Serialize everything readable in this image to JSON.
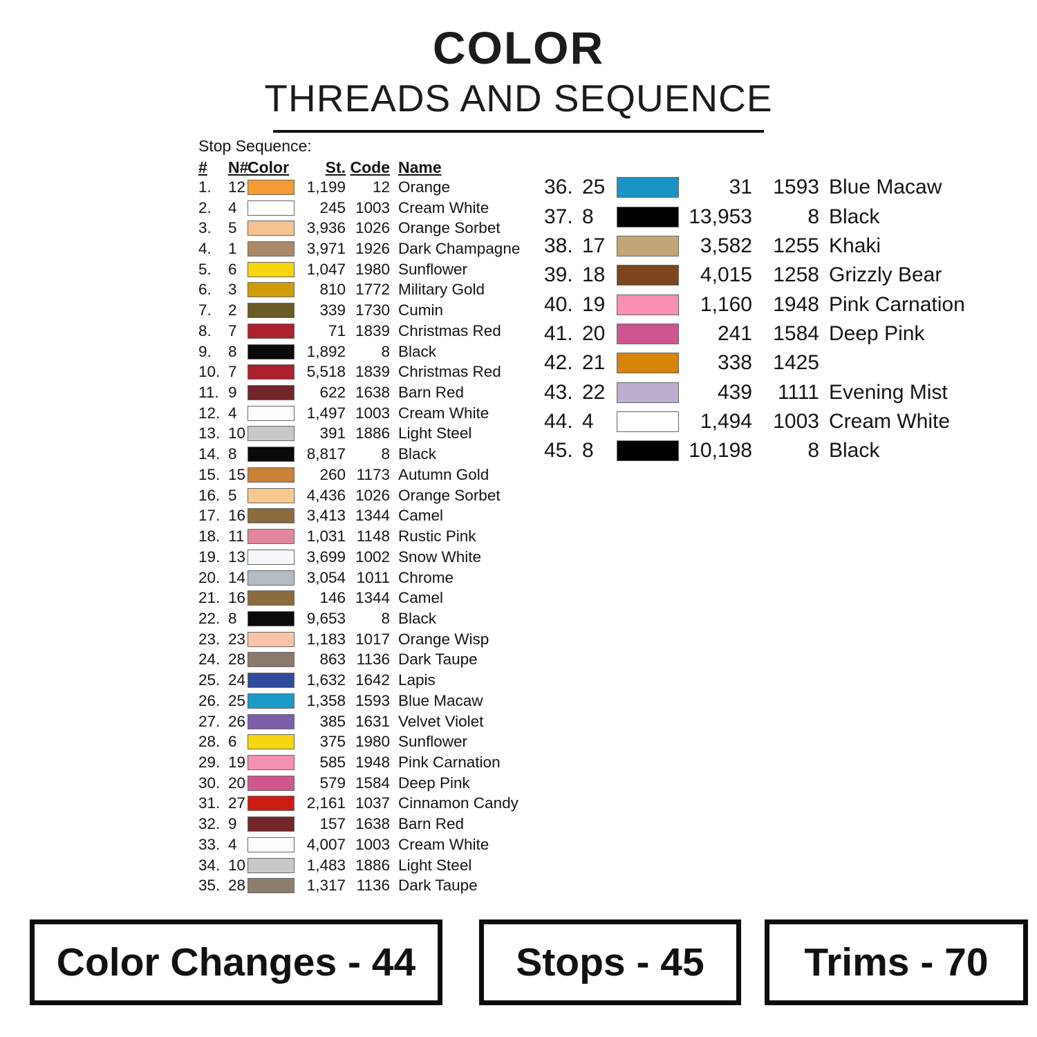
{
  "title": {
    "line1": "COLOR",
    "line2": "THREADS AND SEQUENCE"
  },
  "stop_sequence_label": "Stop Sequence:",
  "table": {
    "headers": {
      "num": "#",
      "n_num": "N#",
      "color": "Color",
      "stitches": "St.",
      "code": "Code",
      "name": "Name"
    },
    "left_rows": [
      {
        "num": "1.",
        "n": "12",
        "color": "#F59B31",
        "st": "1,199",
        "code": "12",
        "name": "Orange"
      },
      {
        "num": "2.",
        "n": "4",
        "color": "#FEFEFC",
        "st": "245",
        "code": "1003",
        "name": "Cream White"
      },
      {
        "num": "3.",
        "n": "5",
        "color": "#F5C291",
        "st": "3,936",
        "code": "1026",
        "name": "Orange Sorbet"
      },
      {
        "num": "4.",
        "n": "1",
        "color": "#A98968",
        "st": "3,971",
        "code": "1926",
        "name": "Dark Champagne"
      },
      {
        "num": "5.",
        "n": "6",
        "color": "#F5D60F",
        "st": "1,047",
        "code": "1980",
        "name": "Sunflower"
      },
      {
        "num": "6.",
        "n": "3",
        "color": "#D19C07",
        "st": "810",
        "code": "1772",
        "name": "Military Gold"
      },
      {
        "num": "7.",
        "n": "2",
        "color": "#6B5A23",
        "st": "339",
        "code": "1730",
        "name": "Cumin"
      },
      {
        "num": "8.",
        "n": "7",
        "color": "#AE1F2D",
        "st": "71",
        "code": "1839",
        "name": "Christmas Red"
      },
      {
        "num": "9.",
        "n": "8",
        "color": "#0A0A0A",
        "st": "1,892",
        "code": "8",
        "name": "Black"
      },
      {
        "num": "10.",
        "n": "7",
        "color": "#AE1F2D",
        "st": "5,518",
        "code": "1839",
        "name": "Christmas Red"
      },
      {
        "num": "11.",
        "n": "9",
        "color": "#73262A",
        "st": "622",
        "code": "1638",
        "name": "Barn Red"
      },
      {
        "num": "12.",
        "n": "4",
        "color": "#FEFEFC",
        "st": "1,497",
        "code": "1003",
        "name": "Cream White"
      },
      {
        "num": "13.",
        "n": "10",
        "color": "#C8C8C8",
        "st": "391",
        "code": "1886",
        "name": "Light Steel"
      },
      {
        "num": "14.",
        "n": "8",
        "color": "#0A0A0A",
        "st": "8,817",
        "code": "8",
        "name": "Black"
      },
      {
        "num": "15.",
        "n": "15",
        "color": "#C98136",
        "st": "260",
        "code": "1173",
        "name": "Autumn Gold"
      },
      {
        "num": "16.",
        "n": "5",
        "color": "#F8C98F",
        "st": "4,436",
        "code": "1026",
        "name": "Orange Sorbet"
      },
      {
        "num": "17.",
        "n": "16",
        "color": "#8A6C3F",
        "st": "3,413",
        "code": "1344",
        "name": "Camel"
      },
      {
        "num": "18.",
        "n": "11",
        "color": "#E2879B",
        "st": "1,031",
        "code": "1148",
        "name": "Rustic Pink"
      },
      {
        "num": "19.",
        "n": "13",
        "color": "#F5F8FB",
        "st": "3,699",
        "code": "1002",
        "name": "Snow White"
      },
      {
        "num": "20.",
        "n": "14",
        "color": "#B4BCC3",
        "st": "3,054",
        "code": "1011",
        "name": "Chrome"
      },
      {
        "num": "21.",
        "n": "16",
        "color": "#8A6C3F",
        "st": "146",
        "code": "1344",
        "name": "Camel"
      },
      {
        "num": "22.",
        "n": "8",
        "color": "#0A0A0A",
        "st": "9,653",
        "code": "8",
        "name": "Black"
      },
      {
        "num": "23.",
        "n": "23",
        "color": "#F7C4A8",
        "st": "1,183",
        "code": "1017",
        "name": "Orange Wisp"
      },
      {
        "num": "24.",
        "n": "28",
        "color": "#8B7A6A",
        "st": "863",
        "code": "1136",
        "name": "Dark Taupe"
      },
      {
        "num": "25.",
        "n": "24",
        "color": "#2F4B9B",
        "st": "1,632",
        "code": "1642",
        "name": "Lapis"
      },
      {
        "num": "26.",
        "n": "25",
        "color": "#1B9BC8",
        "st": "1,358",
        "code": "1593",
        "name": "Blue Macaw"
      },
      {
        "num": "27.",
        "n": "26",
        "color": "#7B5FA8",
        "st": "385",
        "code": "1631",
        "name": "Velvet Violet"
      },
      {
        "num": "28.",
        "n": "6",
        "color": "#F5D60F",
        "st": "375",
        "code": "1980",
        "name": "Sunflower"
      },
      {
        "num": "29.",
        "n": "19",
        "color": "#F490B2",
        "st": "585",
        "code": "1948",
        "name": "Pink Carnation"
      },
      {
        "num": "30.",
        "n": "20",
        "color": "#D1568D",
        "st": "579",
        "code": "1584",
        "name": "Deep Pink"
      },
      {
        "num": "31.",
        "n": "27",
        "color": "#CC1D13",
        "st": "2,161",
        "code": "1037",
        "name": "Cinnamon Candy"
      },
      {
        "num": "32.",
        "n": "9",
        "color": "#73262A",
        "st": "157",
        "code": "1638",
        "name": "Barn Red"
      },
      {
        "num": "33.",
        "n": "4",
        "color": "#FEFEFC",
        "st": "4,007",
        "code": "1003",
        "name": "Cream White"
      },
      {
        "num": "34.",
        "n": "10",
        "color": "#C8C8C8",
        "st": "1,483",
        "code": "1886",
        "name": "Light Steel"
      },
      {
        "num": "35.",
        "n": "28",
        "color": "#8B7F6B",
        "st": "1,317",
        "code": "1136",
        "name": "Dark Taupe"
      }
    ],
    "right_rows": [
      {
        "num": "36.",
        "n": "25",
        "color": "#1B94C5",
        "st": "31",
        "code": "1593",
        "name": "Blue Macaw"
      },
      {
        "num": "37.",
        "n": "8",
        "color": "#000000",
        "st": "13,953",
        "code": "8",
        "name": "Black"
      },
      {
        "num": "38.",
        "n": "17",
        "color": "#C3A678",
        "st": "3,582",
        "code": "1255",
        "name": "Khaki"
      },
      {
        "num": "39.",
        "n": "18",
        "color": "#7C451D",
        "st": "4,015",
        "code": "1258",
        "name": "Grizzly Bear"
      },
      {
        "num": "40.",
        "n": "19",
        "color": "#F98FB4",
        "st": "1,160",
        "code": "1948",
        "name": "Pink Carnation"
      },
      {
        "num": "41.",
        "n": "20",
        "color": "#CE5590",
        "st": "241",
        "code": "1584",
        "name": "Deep Pink"
      },
      {
        "num": "42.",
        "n": "21",
        "color": "#D8830A",
        "st": "338",
        "code": "1425",
        "name": ""
      },
      {
        "num": "43.",
        "n": "22",
        "color": "#BBAECE",
        "st": "439",
        "code": "1111",
        "name": "Evening Mist"
      },
      {
        "num": "44.",
        "n": "4",
        "color": "#FFFFFF",
        "st": "1,494",
        "code": "1003",
        "name": "Cream White"
      },
      {
        "num": "45.",
        "n": "8",
        "color": "#000000",
        "st": "10,198",
        "code": "8",
        "name": "Black"
      }
    ]
  },
  "footer": {
    "color_changes": "Color Changes - 44",
    "stops": "Stops - 45",
    "trims": "Trims - 70"
  }
}
